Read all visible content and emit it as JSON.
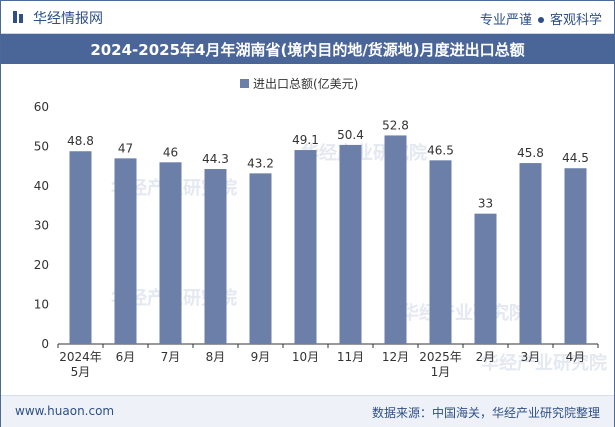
{
  "header": {
    "brand": "华经情报网",
    "slogan_left": "专业严谨",
    "slogan_right": "客观科学",
    "title": "2024-2025年4月年湖南省(境内目的地/货源地)月度进出口总额"
  },
  "footer": {
    "site": "www.huaon.com",
    "source": "数据来源：中国海关，华经产业研究院整理"
  },
  "watermark": "华经产业研究院",
  "colors": {
    "bar": "#6b7fa8",
    "title_bg": "#4a6598",
    "brand": "#2f4f86"
  },
  "chart_data": {
    "type": "bar",
    "title": "2024-2025年4月年湖南省(境内目的地/货源地)月度进出口总额",
    "categories": [
      [
        "2024年",
        "5月"
      ],
      [
        "6月"
      ],
      [
        "7月"
      ],
      [
        "8月"
      ],
      [
        "9月"
      ],
      [
        "10月"
      ],
      [
        "11月"
      ],
      [
        "12月"
      ],
      [
        "2025年",
        "1月"
      ],
      [
        "2月"
      ],
      [
        "3月"
      ],
      [
        "4月"
      ]
    ],
    "series": [
      {
        "name": "进出口总额(亿美元)",
        "values": [
          48.8,
          47,
          46,
          44.3,
          43.2,
          49.1,
          50.4,
          52.8,
          46.5,
          33,
          45.8,
          44.5
        ]
      }
    ],
    "value_labels": [
      "48.8",
      "47",
      "46",
      "44.3",
      "43.2",
      "49.1",
      "50.4",
      "52.8",
      "46.5",
      "33",
      "45.8",
      "44.5"
    ],
    "ylim": [
      0,
      60
    ],
    "yticks": [
      0,
      10,
      20,
      30,
      40,
      50,
      60
    ],
    "xlabel": "",
    "ylabel": "",
    "legend_position": "top-center"
  }
}
